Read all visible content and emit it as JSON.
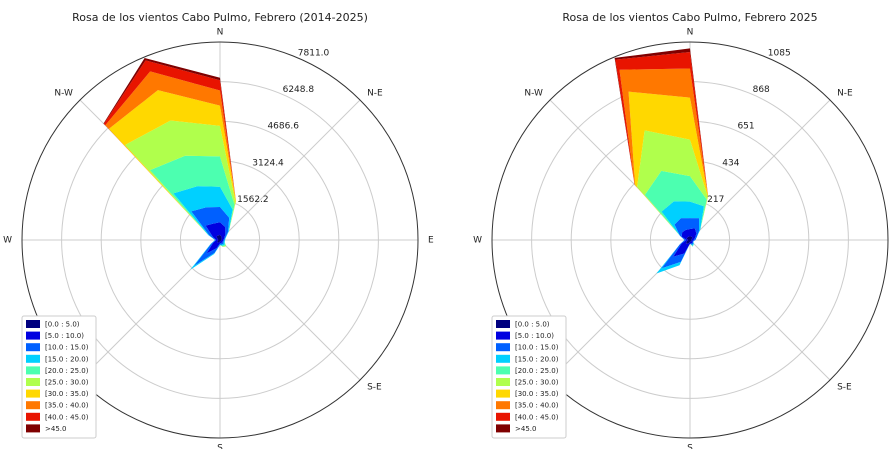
{
  "chart_data": [
    {
      "type": "windrose",
      "title": "Rosa de los vientos Cabo Pulmo, Febrero (2014-2025)",
      "direction_labels": [
        "N",
        "N-E",
        "E",
        "S-E",
        "S",
        "W",
        "N-W"
      ],
      "x": [
        0,
        22.5,
        45,
        67.5,
        90,
        112.5,
        135,
        157.5,
        180,
        202.5,
        225,
        247.5,
        270,
        292.5,
        315,
        337.5
      ],
      "ylim": [
        0,
        7811
      ],
      "yticks": [
        1562.2,
        3124.4,
        4686.6,
        6248.8,
        {
          "value": 7811,
          "label": "7811.0"
        }
      ],
      "grid": true,
      "legend": "lower left",
      "series": [
        {
          "name": "[0.0 : 5.0)",
          "color": "#00007f",
          "values": [
            200,
            150,
            100,
            80,
            60,
            50,
            50,
            50,
            60,
            100,
            150,
            100,
            70,
            100,
            200,
            200
          ]
        },
        {
          "name": "[5.0 : 10.0)",
          "color": "#0000e0",
          "values": [
            500,
            400,
            200,
            100,
            80,
            70,
            80,
            80,
            80,
            250,
            600,
            200,
            80,
            200,
            600,
            500
          ]
        },
        {
          "name": "[10.0 : 15.0)",
          "color": "#0060ff",
          "values": [
            600,
            400,
            150,
            50,
            40,
            40,
            70,
            60,
            40,
            200,
            700,
            80,
            40,
            150,
            800,
            700
          ]
        },
        {
          "name": "[15.0 : 20.0)",
          "color": "#00d0ff",
          "values": [
            800,
            350,
            50,
            20,
            20,
            40,
            60,
            50,
            20,
            50,
            200,
            20,
            10,
            50,
            1000,
            900
          ]
        },
        {
          "name": "[20.0 : 25.0)",
          "color": "#4cffb0",
          "values": [
            1200,
            200,
            0,
            0,
            0,
            0,
            50,
            40,
            0,
            0,
            0,
            0,
            0,
            0,
            1300,
            1300
          ]
        },
        {
          "name": "[25.0 : 30.0)",
          "color": "#b0ff4c",
          "values": [
            1200,
            100,
            0,
            0,
            0,
            0,
            40,
            20,
            0,
            0,
            0,
            0,
            0,
            0,
            1400,
            1500
          ]
        },
        {
          "name": "[30.0 : 35.0)",
          "color": "#ffd800",
          "values": [
            800,
            50,
            0,
            0,
            0,
            0,
            0,
            0,
            0,
            0,
            0,
            0,
            0,
            0,
            900,
            1300
          ]
        },
        {
          "name": "[35.0 : 40.0)",
          "color": "#ff7800",
          "values": [
            600,
            0,
            0,
            0,
            0,
            0,
            0,
            0,
            0,
            0,
            0,
            0,
            0,
            0,
            200,
            800
          ]
        },
        {
          "name": "[40.0 : 45.0)",
          "color": "#e81400",
          "values": [
            400,
            0,
            0,
            0,
            0,
            0,
            0,
            0,
            0,
            0,
            0,
            0,
            0,
            0,
            80,
            470
          ]
        },
        {
          "name": ">45.0",
          "color": "#7f0000",
          "values": [
            100,
            0,
            0,
            0,
            0,
            0,
            0,
            0,
            0,
            0,
            0,
            0,
            0,
            0,
            20,
            100
          ]
        }
      ]
    },
    {
      "type": "windrose",
      "title": "Rosa de los vientos Cabo Pulmo, Febrero 2025",
      "direction_labels": [
        "N",
        "N-E",
        "E",
        "S-E",
        "S",
        "W",
        "N-W"
      ],
      "x": [
        0,
        22.5,
        45,
        67.5,
        90,
        112.5,
        135,
        157.5,
        180,
        202.5,
        225,
        247.5,
        270,
        292.5,
        315,
        337.5
      ],
      "ylim": [
        0,
        1085
      ],
      "yticks": [
        217,
        434,
        651,
        868,
        1085
      ],
      "grid": true,
      "legend": "lower left",
      "series": [
        {
          "name": "[0.0 : 5.0)",
          "color": "#00007f",
          "values": [
            20,
            20,
            20,
            10,
            10,
            10,
            10,
            10,
            10,
            20,
            30,
            20,
            10,
            20,
            20,
            20
          ]
        },
        {
          "name": "[5.0 : 10.0)",
          "color": "#0000e0",
          "values": [
            40,
            50,
            30,
            20,
            10,
            5,
            10,
            10,
            10,
            60,
            100,
            30,
            10,
            30,
            40,
            40
          ]
        },
        {
          "name": "[10.0 : 15.0)",
          "color": "#0060ff",
          "values": [
            60,
            60,
            20,
            10,
            10,
            5,
            5,
            10,
            0,
            50,
            90,
            10,
            10,
            10,
            60,
            70
          ]
        },
        {
          "name": "[15.0 : 20.0)",
          "color": "#00d0ff",
          "values": [
            90,
            70,
            10,
            0,
            0,
            0,
            5,
            5,
            0,
            20,
            40,
            0,
            0,
            0,
            100,
            100
          ]
        },
        {
          "name": "[20.0 : 25.0)",
          "color": "#4cffb0",
          "values": [
            140,
            40,
            0,
            0,
            0,
            0,
            0,
            5,
            0,
            0,
            0,
            0,
            0,
            0,
            130,
            180
          ]
        },
        {
          "name": "[25.0 : 30.0)",
          "color": "#b0ff4c",
          "values": [
            200,
            15,
            0,
            0,
            0,
            0,
            0,
            0,
            0,
            0,
            0,
            0,
            0,
            0,
            60,
            240
          ]
        },
        {
          "name": "[30.0 : 35.0)",
          "color": "#ffd800",
          "values": [
            230,
            5,
            0,
            0,
            0,
            0,
            0,
            0,
            0,
            0,
            0,
            0,
            0,
            0,
            15,
            230
          ]
        },
        {
          "name": "[35.0 : 40.0)",
          "color": "#ff7800",
          "values": [
            160,
            0,
            0,
            0,
            0,
            0,
            0,
            0,
            0,
            0,
            0,
            0,
            0,
            0,
            5,
            130
          ]
        },
        {
          "name": "[40.0 : 45.0)",
          "color": "#e81400",
          "values": [
            90,
            0,
            0,
            0,
            0,
            0,
            0,
            0,
            0,
            0,
            0,
            0,
            0,
            0,
            0,
            60
          ]
        },
        {
          "name": ">45.0",
          "color": "#7f0000",
          "values": [
            20,
            0,
            0,
            0,
            0,
            0,
            0,
            0,
            0,
            0,
            0,
            0,
            0,
            0,
            0,
            10
          ]
        }
      ]
    }
  ]
}
